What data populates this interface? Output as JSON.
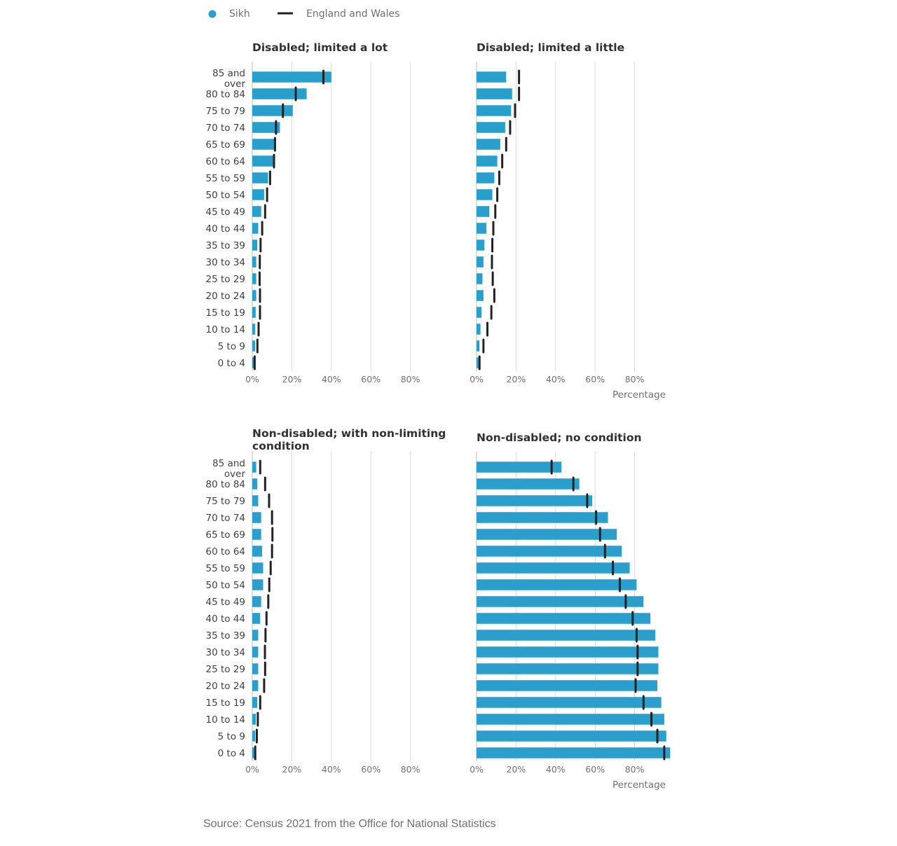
{
  "legend": {
    "sikh_label": "Sikh",
    "ew_label": "England and Wales"
  },
  "colors": {
    "sikh": "#2a9fcc",
    "ew": "#222222",
    "grid": "#d9d9d9"
  },
  "source": "Source: Census 2021 from the Office for National Statistics",
  "chart_data": {
    "type": "bar",
    "orientation": "horizontal",
    "categories": [
      "85 and over",
      "80 to 84",
      "75 to 79",
      "70 to 74",
      "65 to 69",
      "60 to 64",
      "55 to 59",
      "50 to 54",
      "45 to 49",
      "40 to 44",
      "35 to 39",
      "30 to 34",
      "25 to 29",
      "20 to 24",
      "15 to 19",
      "10 to 14",
      "5 to 9",
      "0 to 4"
    ],
    "x_ticks": [
      "0%",
      "20%",
      "40%",
      "60%",
      "80%"
    ],
    "xlim": [
      0,
      100
    ],
    "x_axis_label": "Percentage",
    "grid": true,
    "legend_placement": "top-left",
    "panels": [
      {
        "title": "Disabled; limited a lot",
        "sikh": [
          40,
          27.5,
          20.5,
          14,
          11.5,
          10.5,
          8,
          6,
          4.5,
          3,
          2.5,
          2,
          2,
          2,
          1.7,
          1.5,
          1.5,
          1
        ],
        "england_and_wales": [
          36,
          22,
          15.5,
          12,
          11.5,
          11,
          9,
          7.5,
          6.5,
          5,
          4.2,
          3.8,
          3.7,
          3.9,
          3.9,
          3.2,
          2.6,
          1.2
        ]
      },
      {
        "title": "Disabled; limited a little",
        "sikh": [
          15,
          18,
          17.5,
          14.5,
          12,
          10.5,
          9,
          8,
          6.5,
          5,
          4,
          3.5,
          3,
          3.5,
          2.5,
          2,
          1.5,
          1
        ],
        "england_and_wales": [
          21.5,
          21.5,
          19.5,
          17,
          15,
          13,
          11.5,
          10.5,
          9.5,
          8.5,
          8,
          7.8,
          8.2,
          9,
          7.5,
          5.5,
          3.5,
          1.5
        ]
      },
      {
        "title": "Non-disabled; with non-limiting condition",
        "sikh": [
          2,
          2.5,
          3,
          4.5,
          4.5,
          5,
          5.5,
          5.5,
          4.5,
          4,
          3,
          3,
          3,
          3,
          2.5,
          1.8,
          1.5,
          1
        ],
        "england_and_wales": [
          4,
          6.5,
          8.5,
          10,
          10.2,
          10,
          9.3,
          8.6,
          8.1,
          7.2,
          6.7,
          6.4,
          6.5,
          6,
          4,
          2.8,
          2.3,
          1.5
        ]
      },
      {
        "title": "Non-disabled; no condition",
        "sikh": [
          43,
          52,
          58.5,
          66.5,
          71,
          73.5,
          77.5,
          81,
          84.5,
          88,
          90.5,
          92,
          92,
          91.5,
          93.5,
          95,
          96,
          98
        ],
        "england_and_wales": [
          38,
          49,
          56,
          60.5,
          62.5,
          65,
          69,
          72.5,
          75.5,
          79,
          81,
          81.5,
          81.5,
          80.5,
          84.5,
          88.5,
          91.5,
          95
        ]
      }
    ]
  }
}
